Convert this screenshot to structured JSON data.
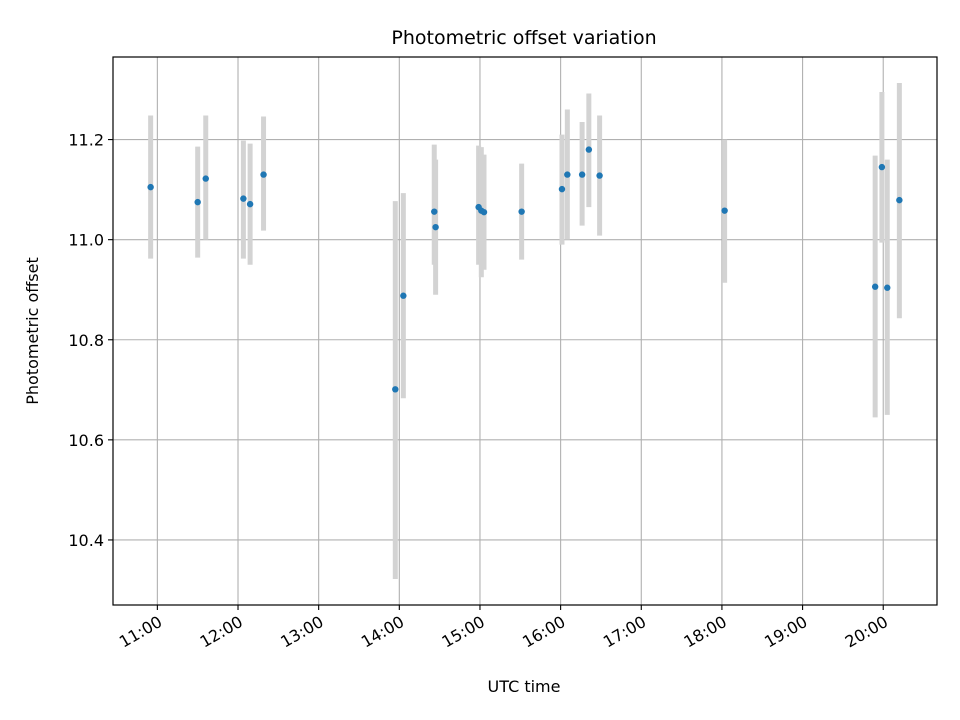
{
  "chart_data": {
    "type": "scatter",
    "title": "Photometric offset variation",
    "xlabel": "UTC time",
    "ylabel": "Photometric offset",
    "xlim": [
      "10:27",
      "20:40"
    ],
    "ylim": [
      10.27,
      11.365
    ],
    "x_ticks": [
      "11:00",
      "12:00",
      "13:00",
      "14:00",
      "15:00",
      "16:00",
      "17:00",
      "18:00",
      "19:00",
      "20:00"
    ],
    "y_ticks": [
      10.4,
      10.6,
      10.8,
      11.0,
      11.2
    ],
    "y_tick_labels": [
      "10.4",
      "10.6",
      "10.8",
      "11.0",
      "11.2"
    ],
    "grid": true,
    "marker_color": "#1f77b4",
    "errorbar_color": "#d3d3d3",
    "points": [
      {
        "time": "10:55",
        "y": 11.105,
        "ylo": 10.962,
        "yhi": 11.248
      },
      {
        "time": "11:30",
        "y": 11.075,
        "ylo": 10.964,
        "yhi": 11.186
      },
      {
        "time": "11:36",
        "y": 11.122,
        "ylo": 11.0,
        "yhi": 11.248
      },
      {
        "time": "12:04",
        "y": 11.082,
        "ylo": 10.962,
        "yhi": 11.198
      },
      {
        "time": "12:09",
        "y": 11.071,
        "ylo": 10.95,
        "yhi": 11.192
      },
      {
        "time": "12:19",
        "y": 11.13,
        "ylo": 11.018,
        "yhi": 11.246
      },
      {
        "time": "13:57",
        "y": 10.701,
        "ylo": 10.322,
        "yhi": 11.077
      },
      {
        "time": "14:03",
        "y": 10.888,
        "ylo": 10.683,
        "yhi": 11.093
      },
      {
        "time": "14:26",
        "y": 11.056,
        "ylo": 10.95,
        "yhi": 11.19
      },
      {
        "time": "14:27",
        "y": 11.025,
        "ylo": 10.89,
        "yhi": 11.16
      },
      {
        "time": "14:59",
        "y": 11.065,
        "ylo": 10.95,
        "yhi": 11.188
      },
      {
        "time": "15:01",
        "y": 11.058,
        "ylo": 10.925,
        "yhi": 11.185
      },
      {
        "time": "15:03",
        "y": 11.055,
        "ylo": 10.94,
        "yhi": 11.17
      },
      {
        "time": "15:31",
        "y": 11.056,
        "ylo": 10.96,
        "yhi": 11.152
      },
      {
        "time": "16:01",
        "y": 11.101,
        "ylo": 10.99,
        "yhi": 11.21
      },
      {
        "time": "16:05",
        "y": 11.13,
        "ylo": 11.0,
        "yhi": 11.26
      },
      {
        "time": "16:16",
        "y": 11.13,
        "ylo": 11.028,
        "yhi": 11.235
      },
      {
        "time": "16:21",
        "y": 11.18,
        "ylo": 11.065,
        "yhi": 11.292
      },
      {
        "time": "16:29",
        "y": 11.128,
        "ylo": 11.008,
        "yhi": 11.248
      },
      {
        "time": "18:02",
        "y": 11.058,
        "ylo": 10.914,
        "yhi": 11.2
      },
      {
        "time": "19:54",
        "y": 10.906,
        "ylo": 10.645,
        "yhi": 11.168
      },
      {
        "time": "19:59",
        "y": 11.145,
        "ylo": 10.994,
        "yhi": 11.295
      },
      {
        "time": "20:03",
        "y": 10.904,
        "ylo": 10.65,
        "yhi": 11.16
      },
      {
        "time": "20:12",
        "y": 11.079,
        "ylo": 10.843,
        "yhi": 11.313
      }
    ]
  }
}
